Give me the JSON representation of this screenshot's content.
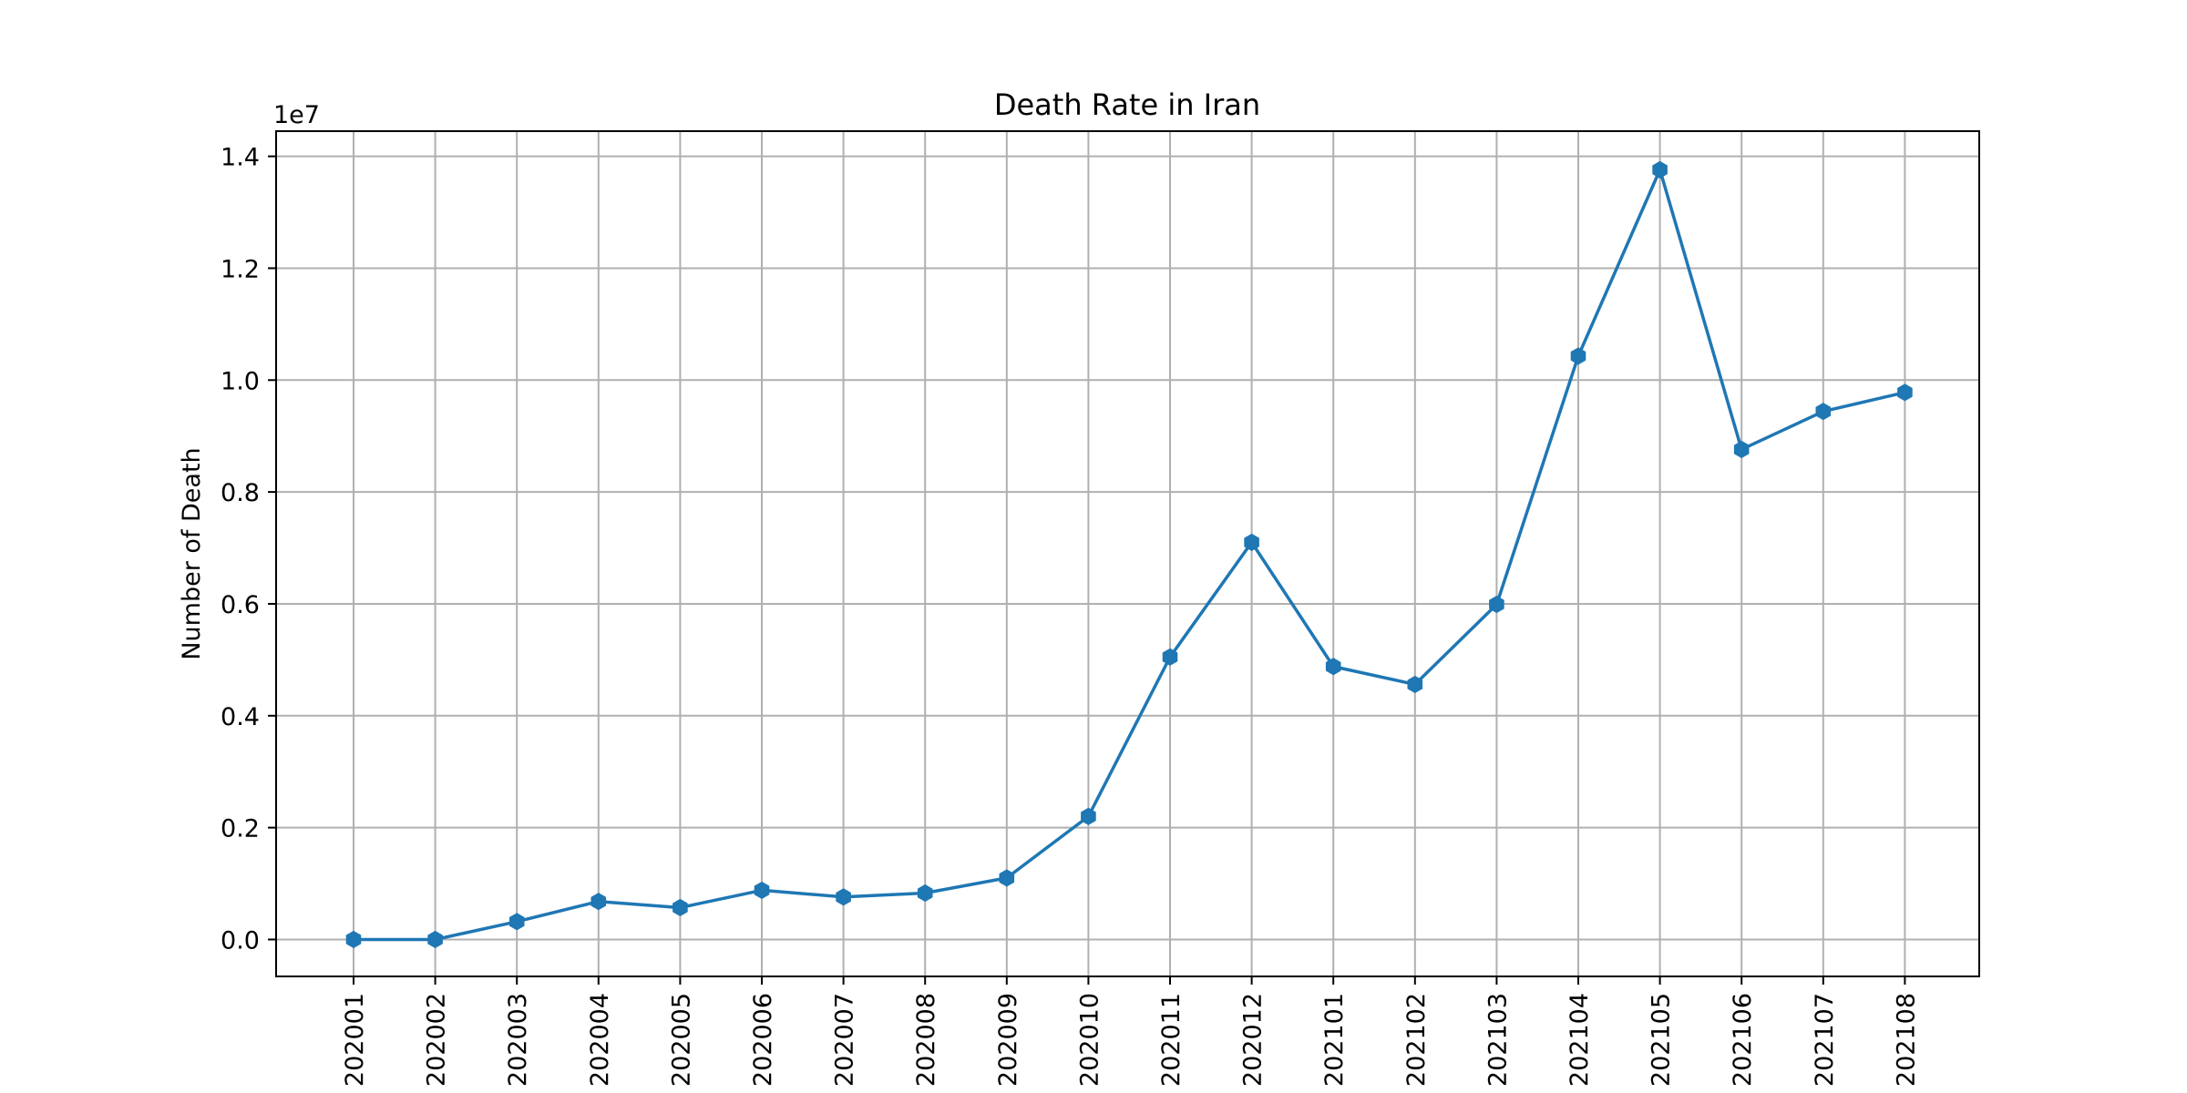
{
  "chart_data": {
    "type": "line",
    "title": "Death Rate in Iran",
    "xlabel": "",
    "ylabel": "Number of Death",
    "y_offset_label": "1e7",
    "categories": [
      "202001",
      "202002",
      "202003",
      "202004",
      "202005",
      "202006",
      "202007",
      "202008",
      "202009",
      "202010",
      "202011",
      "202012",
      "202101",
      "202102",
      "202103",
      "202104",
      "202105",
      "202106",
      "202107",
      "202108"
    ],
    "series": [
      {
        "color": "#1f77b4",
        "marker": "hexagon",
        "values": [
          0,
          0,
          320000,
          680000,
          570000,
          880000,
          760000,
          830000,
          1100000,
          2200000,
          5050000,
          7100000,
          4880000,
          4560000,
          5990000,
          10430000,
          13760000,
          8760000,
          9440000,
          9780000
        ]
      }
    ],
    "ylim": [
      -660000,
      14450000
    ],
    "yticks": [
      0,
      2000000,
      4000000,
      6000000,
      8000000,
      10000000,
      12000000,
      14000000
    ],
    "ytick_labels": [
      "0.0",
      "0.2",
      "0.4",
      "0.6",
      "0.8",
      "1.0",
      "1.2",
      "1.4"
    ],
    "grid": true
  }
}
